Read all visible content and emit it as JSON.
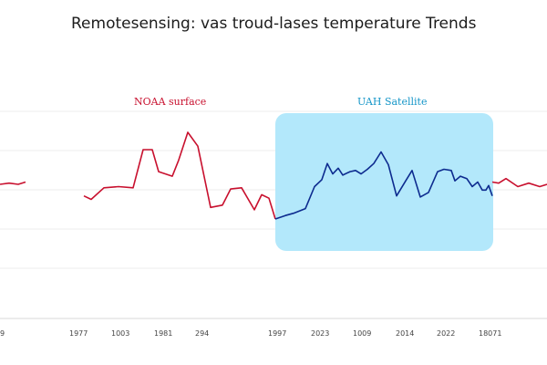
{
  "chart_data": {
    "type": "line",
    "title": "Remotesensing: vas troud-lases temperature Trends",
    "x_tick_labels": [
      "9",
      "1977",
      "1003",
      "1981",
      "294",
      "1997",
      "2023",
      "1009",
      "2014",
      "2022",
      "18071"
    ],
    "grid": true,
    "series": [
      {
        "name": "NOAA surface",
        "color": "#c8102e",
        "segments": [
          [
            [
              0,
              0.55
            ],
            [
              10,
              0.56
            ],
            [
              20,
              0.55
            ],
            [
              28,
              0.57
            ]
          ],
          [
            [
              92,
              0.45
            ],
            [
              100,
              0.42
            ],
            [
              114,
              0.52
            ],
            [
              130,
              0.53
            ],
            [
              146,
              0.52
            ],
            [
              157,
              0.85
            ],
            [
              167,
              0.85
            ],
            [
              174,
              0.66
            ],
            [
              189,
              0.62
            ],
            [
              196,
              0.76
            ],
            [
              206,
              1.0
            ],
            [
              217,
              0.88
            ],
            [
              231,
              0.35
            ],
            [
              244,
              0.37
            ],
            [
              253,
              0.51
            ],
            [
              265,
              0.52
            ],
            [
              279,
              0.33
            ],
            [
              287,
              0.46
            ],
            [
              295,
              0.43
            ],
            [
              302,
              0.25
            ]
          ]
        ]
      },
      {
        "name": "UAH Satellite",
        "color": "#0d2b8f",
        "highlight_color": "#b3e8fb",
        "segments": [
          [
            [
              302,
              0.25
            ],
            [
              313,
              0.28
            ],
            [
              322,
              0.3
            ],
            [
              335,
              0.34
            ],
            [
              345,
              0.53
            ],
            [
              353,
              0.59
            ],
            [
              359,
              0.73
            ],
            [
              365,
              0.64
            ],
            [
              371,
              0.69
            ],
            [
              376,
              0.63
            ],
            [
              384,
              0.66
            ],
            [
              390,
              0.67
            ],
            [
              396,
              0.64
            ],
            [
              403,
              0.68
            ],
            [
              410,
              0.73
            ],
            [
              418,
              0.83
            ],
            [
              426,
              0.72
            ],
            [
              435,
              0.45
            ],
            [
              445,
              0.58
            ],
            [
              452,
              0.67
            ],
            [
              461,
              0.44
            ],
            [
              470,
              0.48
            ],
            [
              480,
              0.66
            ],
            [
              487,
              0.68
            ],
            [
              495,
              0.67
            ],
            [
              499,
              0.58
            ],
            [
              505,
              0.62
            ],
            [
              512,
              0.6
            ],
            [
              518,
              0.53
            ],
            [
              524,
              0.57
            ],
            [
              529,
              0.5
            ],
            [
              533,
              0.5
            ],
            [
              536,
              0.54
            ],
            [
              540,
              0.45
            ]
          ]
        ]
      },
      {
        "name": "",
        "color": "#c8102e",
        "segments": [
          [
            [
              540,
              0.57
            ],
            [
              547,
              0.56
            ],
            [
              555,
              0.6
            ],
            [
              568,
              0.53
            ],
            [
              580,
              0.56
            ],
            [
              592,
              0.53
            ],
            [
              600,
              0.55
            ]
          ]
        ]
      }
    ]
  }
}
